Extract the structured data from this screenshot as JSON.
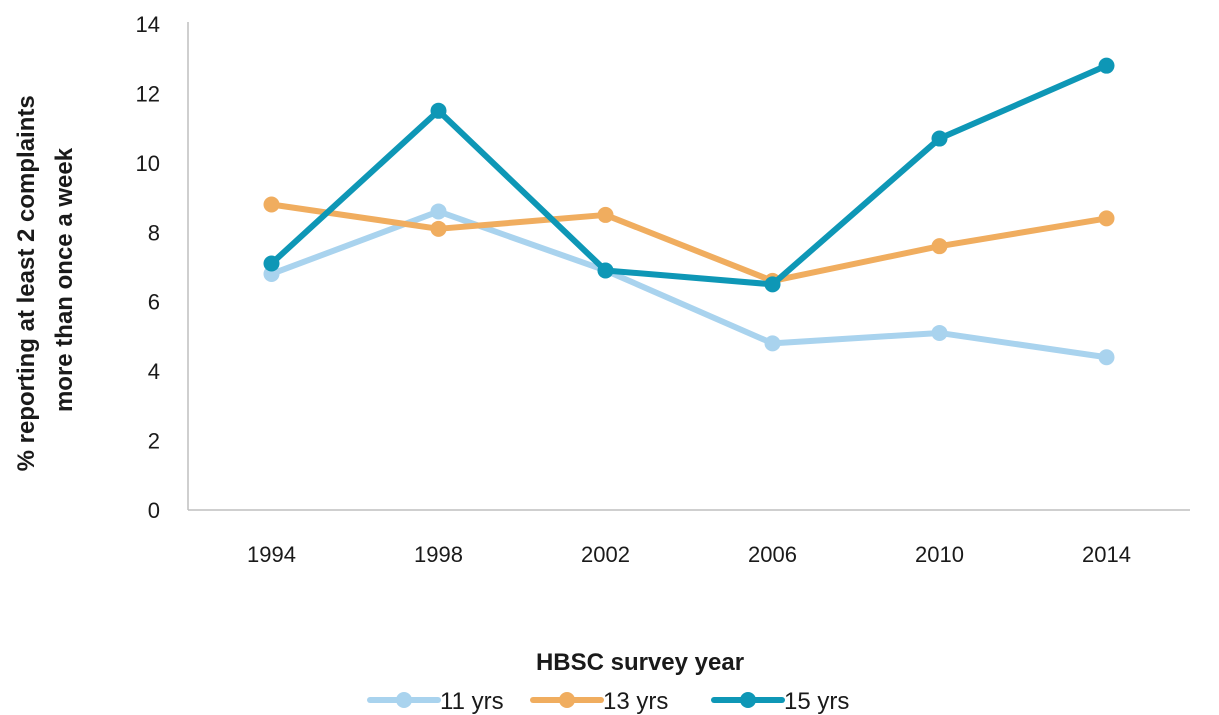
{
  "chart_data": {
    "type": "line",
    "title": "",
    "xlabel": "HBSC survey year",
    "ylabel": [
      "% reporting at least 2 complaints",
      "more than once a week"
    ],
    "ylim": [
      0,
      14
    ],
    "yticks": [
      0,
      2,
      4,
      6,
      8,
      10,
      12,
      14
    ],
    "categories": [
      "1994",
      "1998",
      "2002",
      "2006",
      "2010",
      "2014"
    ],
    "grid": false,
    "legend_position": "bottom",
    "series": [
      {
        "name": "11 yrs",
        "color": "#a9d3ee",
        "values": [
          6.8,
          8.6,
          6.9,
          4.8,
          5.1,
          4.4
        ]
      },
      {
        "name": "13 yrs",
        "color": "#f0ad5f",
        "values": [
          8.8,
          8.1,
          8.5,
          6.6,
          7.6,
          8.4
        ]
      },
      {
        "name": "15 yrs",
        "color": "#0e97b6",
        "values": [
          7.1,
          11.5,
          6.9,
          6.5,
          10.7,
          12.8
        ]
      }
    ]
  }
}
